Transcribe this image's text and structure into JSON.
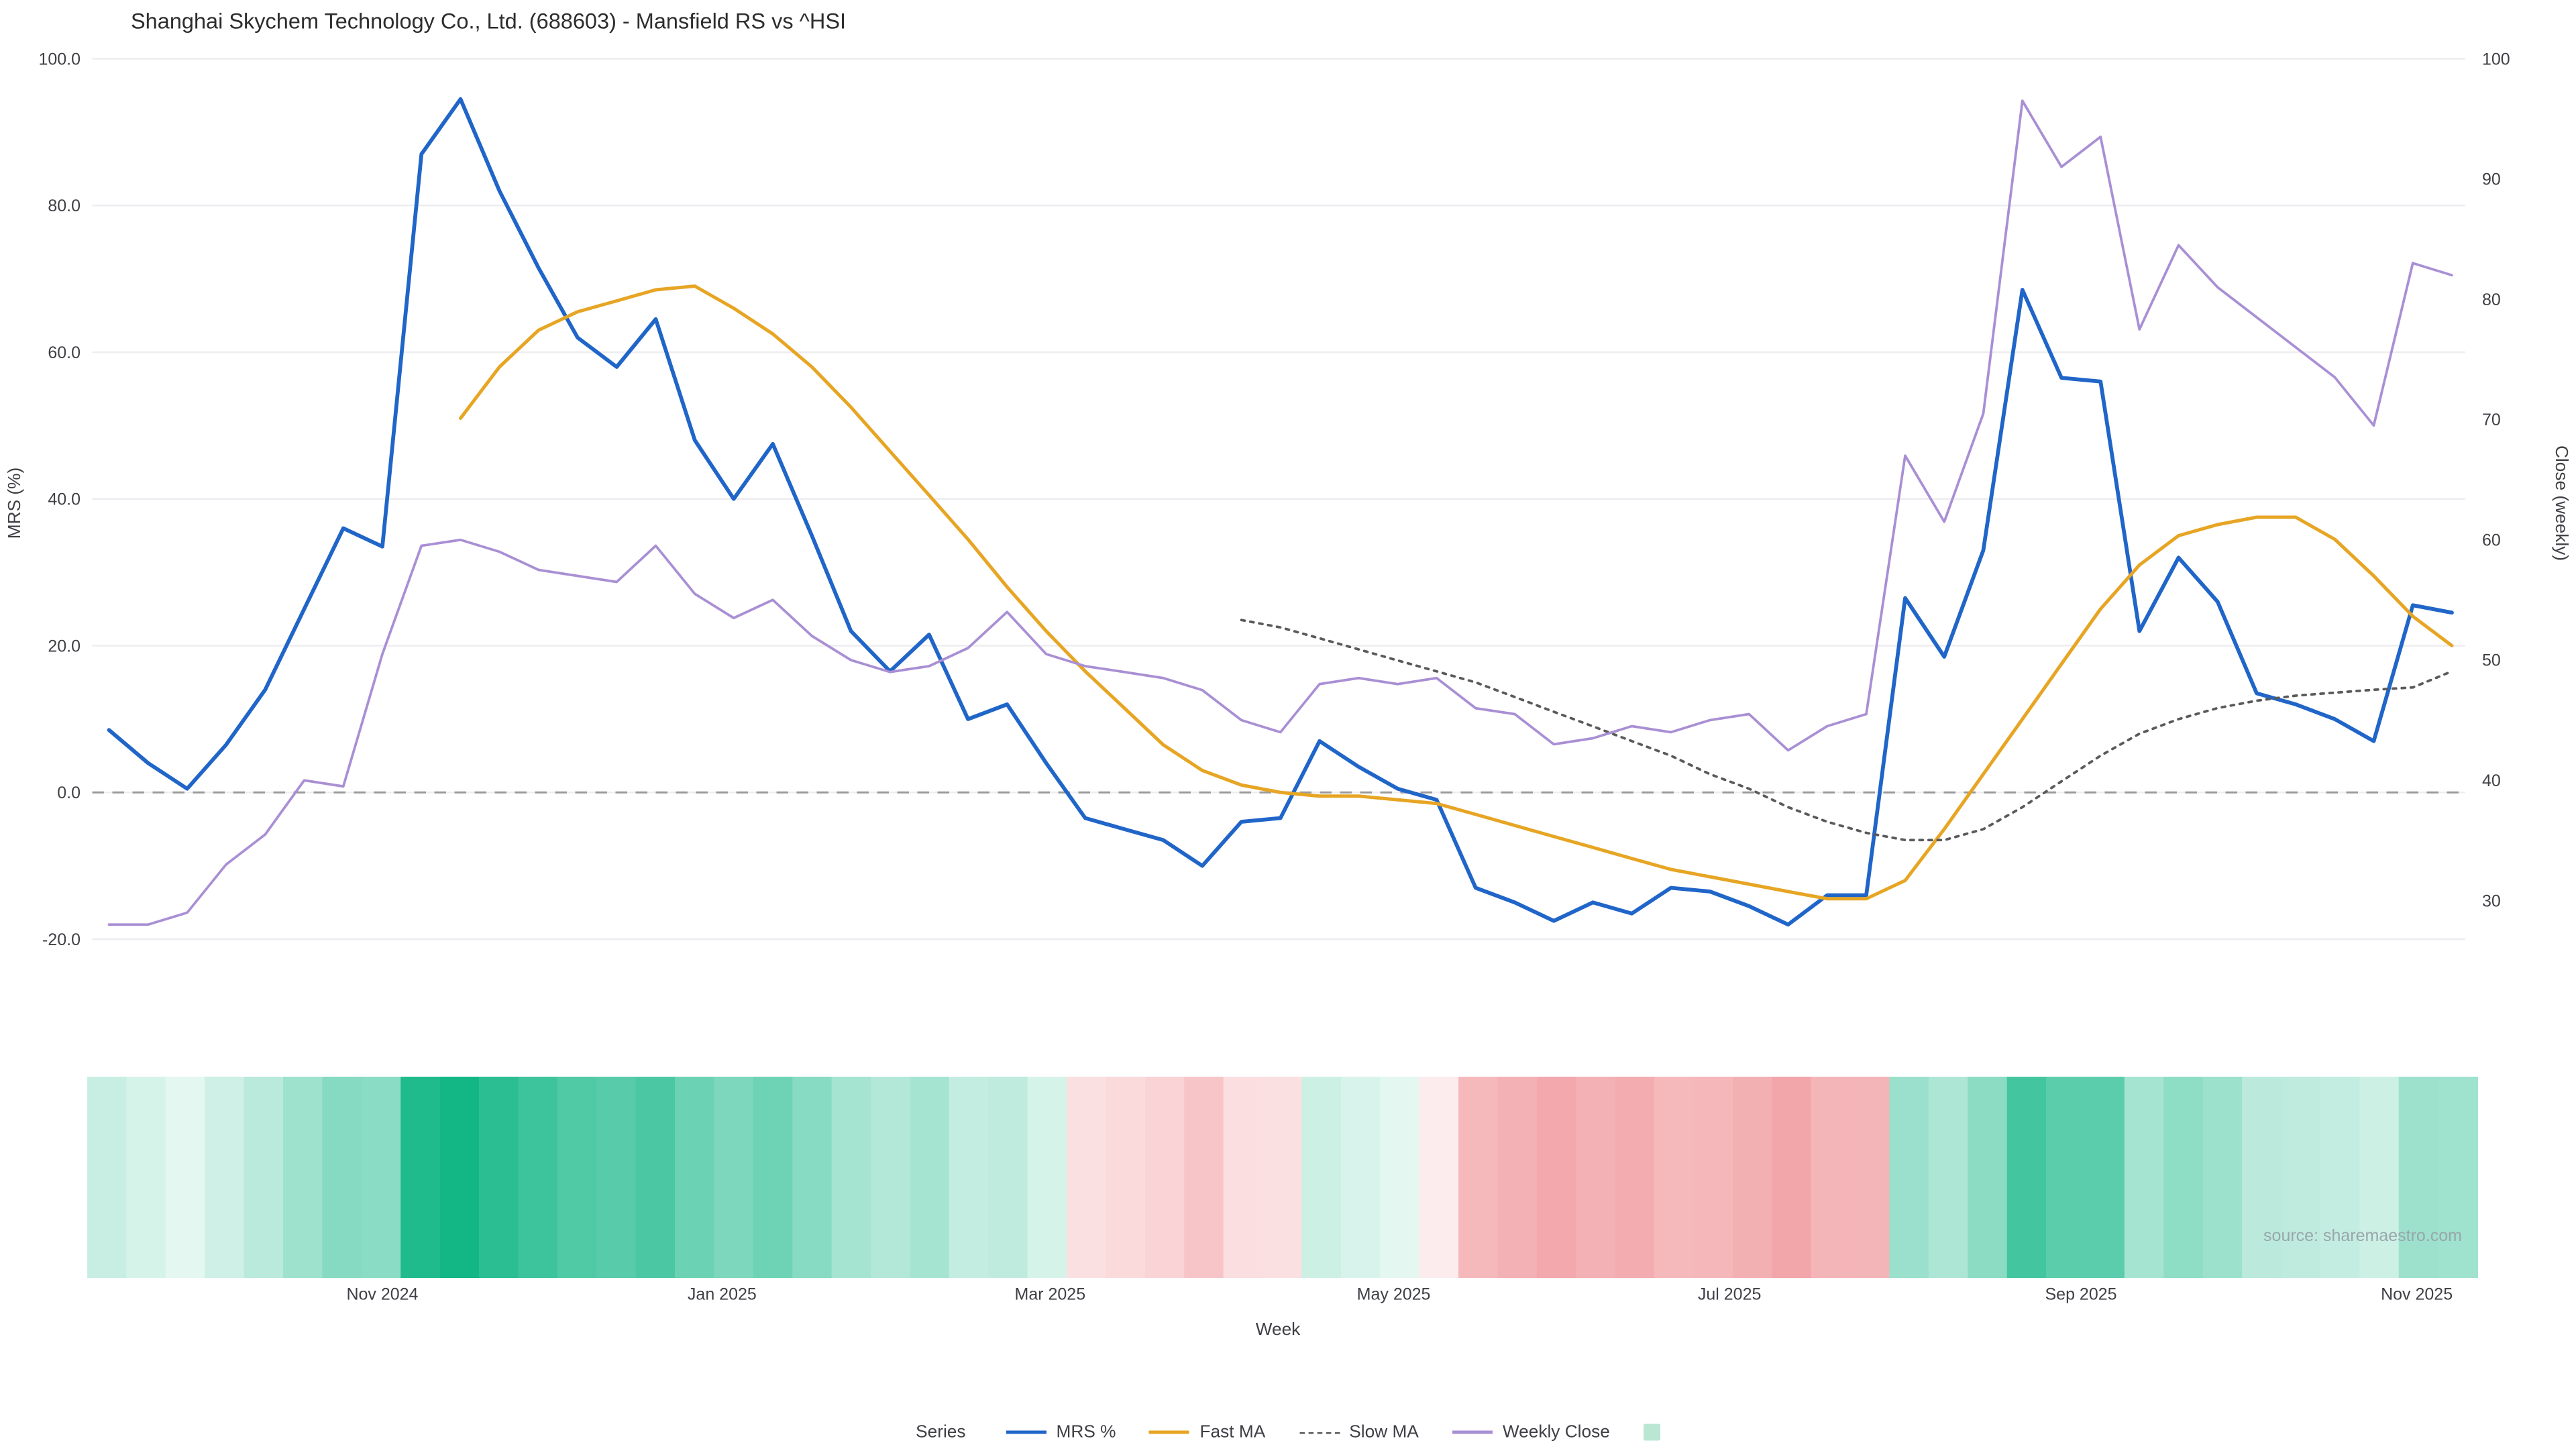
{
  "header": {
    "title": "Shanghai Skychem Technology Co., Ltd. (688603) - Mansfield RS vs ^HSI"
  },
  "source_note": "source: sharemaestro.com",
  "legend": {
    "label": "Series",
    "items": [
      {
        "label": "MRS %",
        "type": "line",
        "color": "#2065c8"
      },
      {
        "label": "Fast MA",
        "type": "line",
        "color": "#e7a524"
      },
      {
        "label": "Slow MA",
        "type": "dashed",
        "color": "#5a5a5a"
      },
      {
        "label": "Weekly Close",
        "type": "line",
        "color": "#a98fd4"
      },
      {
        "label": "",
        "type": "swatch",
        "color": "#b9e7d4"
      }
    ]
  },
  "chart_data": {
    "type": "line",
    "title": "Shanghai Skychem Technology Co., Ltd. (688603) - Mansfield RS vs ^HSI",
    "xlabel": "Week",
    "ylabel_left": "MRS (%)",
    "ylabel_right": "Close (weekly)",
    "ylim_left": [
      -25,
      102
    ],
    "ylim_right": [
      25,
      100
    ],
    "grid": "horizontal",
    "legend_position": "bottom",
    "zero_line": 0,
    "weeks": 61,
    "y_left_ticks": [
      {
        "value": 100,
        "label": "100.0"
      },
      {
        "value": 80,
        "label": "80.0"
      },
      {
        "value": 60,
        "label": "60.0"
      },
      {
        "value": 40,
        "label": "40.0"
      },
      {
        "value": 20,
        "label": "20.0"
      },
      {
        "value": 0,
        "label": "0.0"
      },
      {
        "value": -20,
        "label": "-20.0"
      }
    ],
    "y_right_ticks": [
      {
        "value": 100,
        "label": "100"
      },
      {
        "value": 90,
        "label": "90"
      },
      {
        "value": 80,
        "label": "80"
      },
      {
        "value": 70,
        "label": "70"
      },
      {
        "value": 60,
        "label": "60"
      },
      {
        "value": 50,
        "label": "50"
      },
      {
        "value": 40,
        "label": "40"
      },
      {
        "value": 30,
        "label": "30"
      }
    ],
    "x_ticks": [
      {
        "label": "Nov 2024",
        "week": 7.0
      },
      {
        "label": "Jan 2025",
        "week": 15.7
      },
      {
        "label": "Mar 2025",
        "week": 24.1
      },
      {
        "label": "May 2025",
        "week": 32.9
      },
      {
        "label": "Jul 2025",
        "week": 41.5
      },
      {
        "label": "Sep 2025",
        "week": 50.5
      },
      {
        "label": "Nov 2025",
        "week": 59.1
      }
    ],
    "series": [
      {
        "name": "MRS %",
        "axis": "left",
        "style": "solid",
        "color": "#2065c8",
        "values": [
          8.5,
          4,
          0.5,
          6.5,
          14,
          25,
          36,
          33.5,
          87,
          94.5,
          82,
          71.5,
          62,
          58,
          64.5,
          48,
          40,
          47.5,
          35,
          22,
          16.5,
          21.5,
          10,
          12,
          4,
          -3.5,
          -5,
          -6.5,
          -10,
          -4,
          -3.5,
          7,
          3.5,
          0.5,
          -1,
          -13,
          -15,
          -17.5,
          -15,
          -16.5,
          -13,
          -13.5,
          -15.5,
          -18,
          -14,
          -14,
          26.5,
          18.5,
          33,
          68.5,
          56.5,
          56,
          22,
          32,
          26,
          13.5,
          12,
          10,
          7,
          25.5,
          24.5
        ]
      },
      {
        "name": "Fast MA",
        "axis": "left",
        "style": "solid",
        "color": "#e7a524",
        "values": [
          null,
          null,
          null,
          null,
          null,
          null,
          null,
          null,
          null,
          51,
          58,
          63,
          65.5,
          67,
          68.5,
          69,
          66,
          62.5,
          58,
          52.5,
          46.5,
          40.5,
          34.5,
          28,
          22,
          16.5,
          11.5,
          6.5,
          3,
          1,
          0,
          -0.5,
          -0.5,
          -1,
          -1.5,
          -3,
          -4.5,
          -6,
          -7.5,
          -9,
          -10.5,
          -11.5,
          -12.5,
          -13.5,
          -14.5,
          -14.5,
          -12,
          -5,
          2.5,
          10,
          17.5,
          25,
          31,
          35,
          36.5,
          37.5,
          37.5,
          34.5,
          29.5,
          24,
          20
        ]
      },
      {
        "name": "Slow MA",
        "axis": "left",
        "style": "dotted",
        "color": "#5a5a5a",
        "values": [
          null,
          null,
          null,
          null,
          null,
          null,
          null,
          null,
          null,
          null,
          null,
          null,
          null,
          null,
          null,
          null,
          null,
          null,
          null,
          null,
          null,
          null,
          null,
          null,
          null,
          null,
          null,
          null,
          null,
          23.5,
          22.5,
          21,
          19.5,
          18,
          16.5,
          15,
          13,
          11,
          9,
          7,
          5,
          2.5,
          0.5,
          -2,
          -4,
          -5.5,
          -6.5,
          -6.5,
          -5,
          -2,
          1.5,
          5,
          8,
          10,
          11.5,
          12.5,
          13.2,
          13.6,
          14,
          14.3,
          16.5
        ]
      },
      {
        "name": "Weekly Close",
        "axis": "right",
        "style": "solid",
        "color": "#a98fd4",
        "values": [
          28,
          28,
          29,
          33,
          35.5,
          40,
          39.5,
          50.5,
          59.5,
          60,
          59,
          57.5,
          57,
          56.5,
          59.5,
          55.5,
          53.5,
          55,
          52,
          50,
          49,
          49.5,
          51,
          54,
          50.5,
          49.5,
          49,
          48.5,
          47.5,
          45,
          44,
          48,
          48.5,
          48,
          48.5,
          46,
          45.5,
          43,
          43.5,
          44.5,
          44,
          45,
          45.5,
          42.5,
          44.5,
          45.5,
          67,
          61.5,
          70.5,
          96.5,
          91,
          93.5,
          77.5,
          84.5,
          81,
          78.5,
          76,
          73.5,
          69.5,
          83,
          82
        ]
      }
    ],
    "heatmap": {
      "derived_from": "MRS %",
      "positive_color": "#12b786",
      "negative_color": "#f2a6aa"
    }
  }
}
